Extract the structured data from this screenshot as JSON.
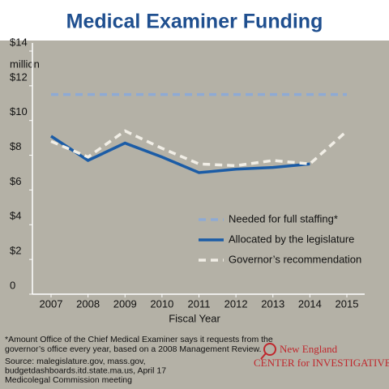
{
  "chart_data": {
    "type": "line",
    "title": "Medical Examiner Funding",
    "y_unit": "million",
    "x_label": "Fiscal Year",
    "categories": [
      "2007",
      "2008",
      "2009",
      "2010",
      "2011",
      "2012",
      "2013",
      "2014",
      "2015"
    ],
    "series": [
      {
        "name": "Needed for full staffing*",
        "color": "#8eaad4",
        "dash": true,
        "values": [
          11.5,
          11.5,
          11.5,
          11.5,
          11.5,
          11.5,
          11.5,
          11.5,
          11.5
        ]
      },
      {
        "name": "Allocated by the legislature",
        "color": "#1b5ca6",
        "dash": false,
        "values": [
          9.1,
          7.7,
          8.7,
          7.9,
          7.0,
          7.2,
          7.3,
          7.5,
          null
        ]
      },
      {
        "name": "Governor’s recommendation",
        "color": "#f1eee6",
        "dash": true,
        "values": [
          8.8,
          7.9,
          9.4,
          8.4,
          7.5,
          7.4,
          7.7,
          7.5,
          9.4
        ]
      }
    ],
    "ylim": [
      0,
      14
    ],
    "yticks": [
      0,
      {
        "value": 2,
        "label": "$2"
      },
      {
        "value": 4,
        "label": "$4"
      },
      {
        "value": 6,
        "label": "$6"
      },
      {
        "value": 8,
        "label": "$8"
      },
      {
        "value": 10,
        "label": "$10"
      },
      {
        "value": 12,
        "label": "$12"
      },
      {
        "value": 14,
        "label": "$14"
      }
    ],
    "grid": false,
    "footnote": [
      "*Amount Office of the Chief Medical Examiner says it requests from the",
      "governor’s office every year, based on a 2008 Management Review."
    ],
    "source": [
      "Source: malegislature.gov, mass.gov,",
      "budgetdashboards.itd.state.ma.us, April 17",
      "Medicolegal Commission meeting"
    ],
    "logo": [
      "New England",
      "CENTER for INVESTIGATIVE REPORTING"
    ]
  }
}
